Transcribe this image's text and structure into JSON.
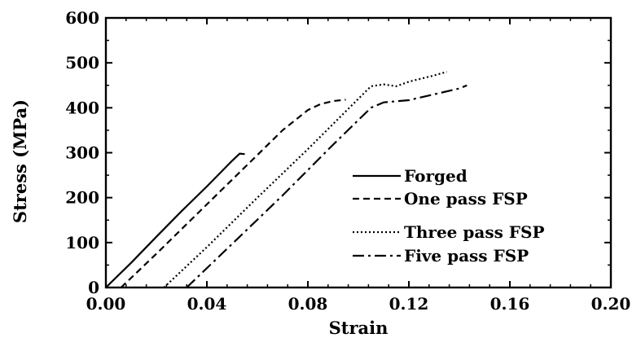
{
  "chart_data": {
    "type": "line",
    "title": "",
    "xlabel": "Strain",
    "ylabel": "Stress (MPa)",
    "xlim": [
      0.0,
      0.2
    ],
    "ylim": [
      0,
      600
    ],
    "x_ticks": [
      "0.00",
      "0.04",
      "0.08",
      "0.12",
      "0.16",
      "0.20"
    ],
    "y_ticks": [
      "0",
      "100",
      "200",
      "300",
      "400",
      "500",
      "600"
    ],
    "grid": false,
    "legend_position": "lower-right",
    "series": [
      {
        "name": "Forged",
        "line_style": "solid",
        "x": [
          0.0,
          0.01,
          0.02,
          0.03,
          0.04,
          0.05,
          0.053,
          0.055
        ],
        "y": [
          0,
          55,
          113,
          170,
          225,
          282,
          298,
          297
        ]
      },
      {
        "name": "One pass FSP",
        "line_style": "dashed",
        "x": [
          0.006,
          0.02,
          0.04,
          0.06,
          0.07,
          0.08,
          0.085,
          0.09,
          0.095
        ],
        "y": [
          0,
          75,
          185,
          295,
          350,
          395,
          408,
          415,
          418
        ]
      },
      {
        "name": "Three pass FSP",
        "line_style": "dotted",
        "x": [
          0.023,
          0.04,
          0.06,
          0.08,
          0.1,
          0.105,
          0.11,
          0.115,
          0.12,
          0.13,
          0.135
        ],
        "y": [
          0,
          90,
          200,
          308,
          420,
          448,
          452,
          448,
          458,
          472,
          480
        ]
      },
      {
        "name": "Five pass FSP",
        "line_style": "dashdot",
        "x": [
          0.032,
          0.05,
          0.07,
          0.09,
          0.105,
          0.11,
          0.12,
          0.13,
          0.14,
          0.143
        ],
        "y": [
          0,
          97,
          205,
          318,
          400,
          412,
          417,
          430,
          443,
          450
        ]
      }
    ]
  }
}
